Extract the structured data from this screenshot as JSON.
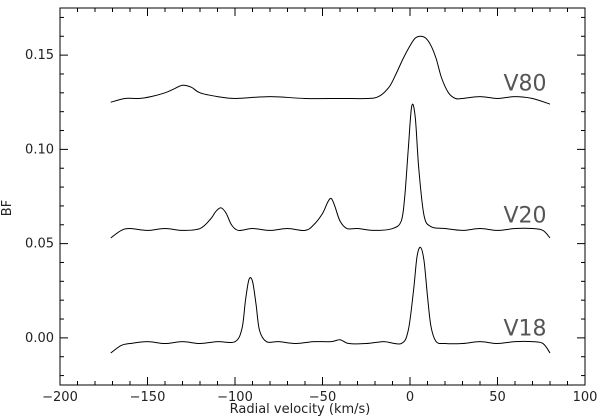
{
  "chart_data": {
    "type": "line",
    "title": "",
    "xlabel": "Radial velocity (km/s)",
    "ylabel": "BF",
    "xlim": [
      -200,
      100
    ],
    "ylim": [
      -0.025,
      0.175
    ],
    "xticks": [
      -200,
      -150,
      -100,
      -50,
      0,
      50,
      100
    ],
    "yticks": [
      0.0,
      0.05,
      0.1,
      0.15
    ],
    "xtick_labels": [
      "−200",
      "−150",
      "−100",
      "−50",
      "0",
      "50",
      "100"
    ],
    "ytick_labels": [
      "0.00",
      "0.05",
      "0.10",
      "0.15"
    ],
    "grid": false,
    "series": [
      {
        "name": "V80",
        "x": [
          -171,
          -163,
          -155,
          -148,
          -140,
          -135,
          -130,
          -125,
          -120,
          -110,
          -100,
          -80,
          -60,
          -40,
          -25,
          -18,
          -12,
          -8,
          -4,
          0,
          3,
          6,
          9,
          12,
          15,
          18,
          22,
          26,
          30,
          40,
          50,
          60,
          70,
          80
        ],
        "y": [
          0.125,
          0.127,
          0.127,
          0.128,
          0.13,
          0.132,
          0.134,
          0.133,
          0.13,
          0.128,
          0.127,
          0.128,
          0.127,
          0.127,
          0.127,
          0.128,
          0.133,
          0.14,
          0.148,
          0.155,
          0.159,
          0.16,
          0.159,
          0.155,
          0.148,
          0.138,
          0.13,
          0.127,
          0.127,
          0.128,
          0.127,
          0.128,
          0.127,
          0.124
        ]
      },
      {
        "name": "V20",
        "x": [
          -171,
          -165,
          -160,
          -150,
          -140,
          -130,
          -120,
          -114,
          -111,
          -108,
          -105,
          -102,
          -98,
          -90,
          -80,
          -70,
          -60,
          -55,
          -50,
          -47,
          -45,
          -43,
          -40,
          -36,
          -30,
          -20,
          -10,
          -5,
          -3,
          -1,
          1,
          3,
          5,
          8,
          12,
          20,
          30,
          40,
          50,
          60,
          70,
          76,
          80
        ],
        "y": [
          0.053,
          0.057,
          0.058,
          0.057,
          0.058,
          0.057,
          0.058,
          0.063,
          0.067,
          0.069,
          0.066,
          0.06,
          0.057,
          0.058,
          0.057,
          0.058,
          0.057,
          0.06,
          0.066,
          0.072,
          0.074,
          0.07,
          0.062,
          0.058,
          0.058,
          0.057,
          0.058,
          0.062,
          0.075,
          0.1,
          0.123,
          0.117,
          0.09,
          0.065,
          0.059,
          0.058,
          0.057,
          0.058,
          0.057,
          0.058,
          0.058,
          0.057,
          0.053
        ]
      },
      {
        "name": "V18",
        "x": [
          -171,
          -165,
          -160,
          -150,
          -140,
          -130,
          -120,
          -110,
          -100,
          -96,
          -94,
          -92,
          -90,
          -88,
          -86,
          -82,
          -75,
          -65,
          -55,
          -45,
          -40,
          -35,
          -25,
          -15,
          -5,
          -1,
          2,
          4,
          6,
          8,
          10,
          12,
          15,
          20,
          30,
          40,
          50,
          60,
          70,
          76,
          80
        ],
        "y": [
          -0.008,
          -0.004,
          -0.003,
          -0.002,
          -0.003,
          -0.002,
          -0.003,
          -0.002,
          -0.002,
          0.005,
          0.02,
          0.031,
          0.03,
          0.018,
          0.004,
          -0.002,
          -0.002,
          -0.003,
          -0.002,
          -0.002,
          -0.001,
          -0.003,
          -0.003,
          -0.002,
          -0.003,
          0.004,
          0.025,
          0.043,
          0.048,
          0.041,
          0.022,
          0.006,
          -0.002,
          -0.003,
          -0.003,
          -0.002,
          -0.003,
          -0.002,
          -0.002,
          -0.003,
          -0.008
        ]
      }
    ]
  }
}
